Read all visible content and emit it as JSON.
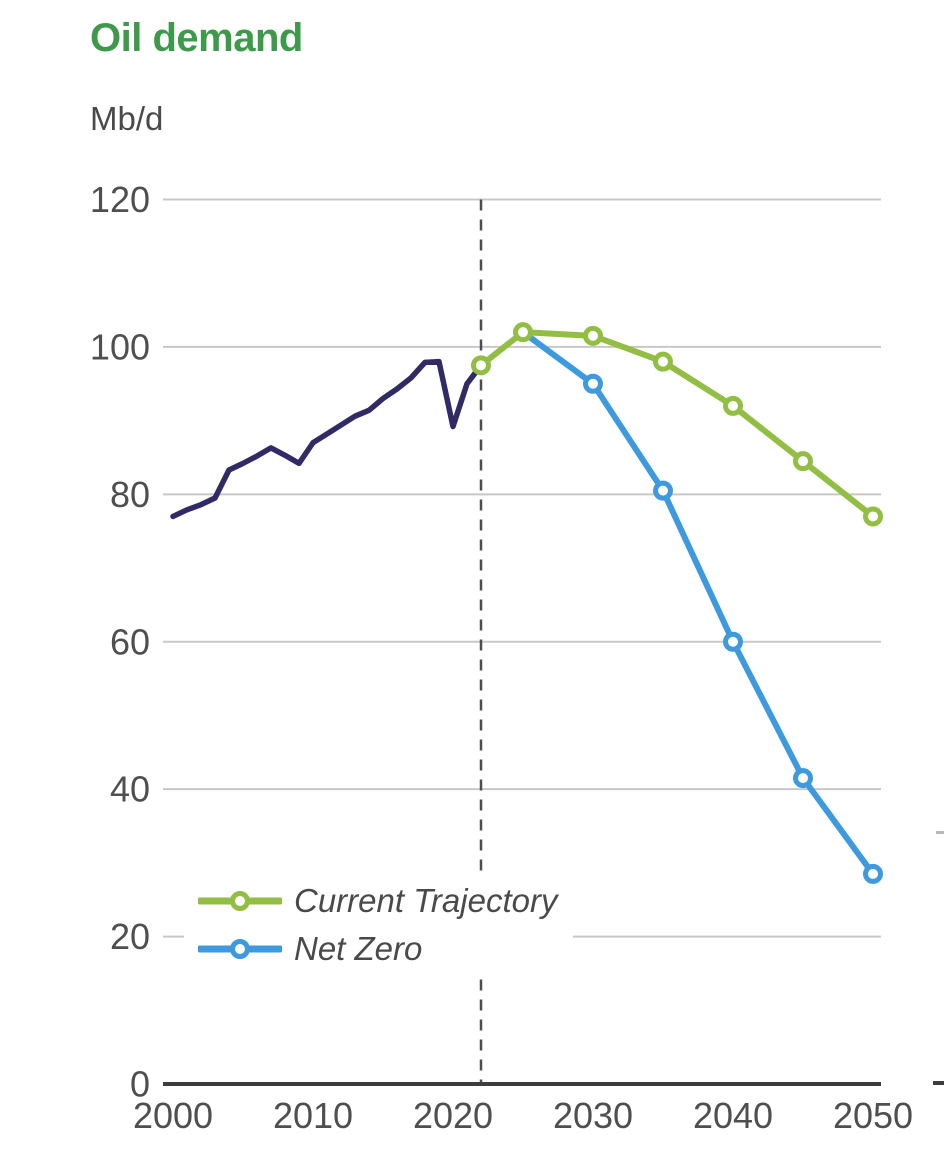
{
  "header": {
    "title": "Oil demand",
    "unit": "Mb/d"
  },
  "colors": {
    "title_green": "#3e9a4b",
    "history_navy": "#302b66",
    "current_trajectory_green": "#92be44",
    "net_zero_blue": "#3e9ade",
    "gridline": "#c8c8c8",
    "axis": "#3d3d3d",
    "tick_label": "#4f4f4f",
    "legend_text": "#4a4a4a",
    "dashed_line": "#4d4d4d"
  },
  "chart_data": {
    "type": "line",
    "title": "Oil demand",
    "ylabel": "Mb/d",
    "xlabel": "",
    "ylim": [
      0,
      120
    ],
    "xlim": [
      2000,
      2050
    ],
    "y_ticks": [
      0,
      20,
      40,
      60,
      80,
      100,
      120
    ],
    "x_ticks": [
      2000,
      2010,
      2020,
      2030,
      2040,
      2050
    ],
    "grid": "horizontal",
    "annotation": {
      "type": "dashed-vertical-line",
      "x": 2022
    },
    "legend": {
      "position": "inside-bottom-left",
      "entries": [
        "Current Trajectory",
        "Net Zero"
      ]
    },
    "series": [
      {
        "name": "History",
        "color": "#302b66",
        "markers": false,
        "x": [
          2000,
          2001,
          2002,
          2003,
          2004,
          2005,
          2006,
          2007,
          2008,
          2009,
          2010,
          2011,
          2012,
          2013,
          2014,
          2015,
          2016,
          2017,
          2018,
          2019,
          2020,
          2021,
          2022
        ],
        "values": [
          77,
          77.9,
          78.6,
          79.5,
          83.3,
          84.2,
          85.2,
          86.3,
          85.3,
          84.2,
          87,
          88.2,
          89.4,
          90.6,
          91.4,
          93,
          94.3,
          95.8,
          97.9,
          98,
          89.2,
          95,
          97.5
        ]
      },
      {
        "name": "Net Zero",
        "color": "#3e9ade",
        "markers": true,
        "marker_x": [
          2030,
          2035,
          2040,
          2045,
          2050
        ],
        "x": [
          2025,
          2030,
          2035,
          2040,
          2045,
          2050
        ],
        "values": [
          102,
          95,
          80.5,
          60,
          41.5,
          28.5
        ]
      },
      {
        "name": "Current Trajectory",
        "color": "#92be44",
        "markers": true,
        "marker_x": [
          2022,
          2025,
          2030,
          2035,
          2040,
          2045,
          2050
        ],
        "x": [
          2022,
          2025,
          2030,
          2035,
          2040,
          2045,
          2050
        ],
        "values": [
          97.5,
          102,
          101.5,
          98,
          92,
          84.5,
          77
        ]
      }
    ]
  },
  "fragments": {
    "note": "partial marks of adjacent cropped chart at right edge"
  }
}
